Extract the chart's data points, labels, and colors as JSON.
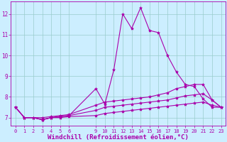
{
  "background_color": "#cceeff",
  "line_color": "#aa00aa",
  "grid_color": "#99cccc",
  "xlabel": "Windchill (Refroidissement éolien,°C)",
  "xlabel_fontsize": 6.5,
  "xtick_labels": [
    "0",
    "1",
    "2",
    "3",
    "4",
    "5",
    "6",
    "9",
    "10",
    "11",
    "12",
    "13",
    "14",
    "15",
    "16",
    "17",
    "18",
    "19",
    "20",
    "21",
    "22",
    "23"
  ],
  "xtick_positions": [
    0,
    1,
    2,
    3,
    4,
    5,
    6,
    9,
    10,
    11,
    12,
    13,
    14,
    15,
    16,
    17,
    18,
    19,
    20,
    21,
    22,
    23
  ],
  "yticks": [
    7,
    8,
    9,
    10,
    11,
    12
  ],
  "ylim": [
    6.6,
    12.6
  ],
  "xlim": [
    -0.5,
    23.5
  ],
  "series1_x": [
    0,
    1,
    2,
    3,
    4,
    5,
    6,
    9,
    10,
    11,
    12,
    13,
    14,
    15,
    16,
    17,
    18,
    19,
    20,
    21,
    22,
    23
  ],
  "series1_y": [
    7.5,
    7.0,
    7.0,
    6.9,
    7.0,
    7.05,
    7.1,
    8.4,
    7.65,
    9.3,
    12.0,
    11.3,
    12.3,
    11.2,
    11.1,
    10.0,
    9.2,
    8.6,
    8.5,
    7.9,
    7.5,
    7.5
  ],
  "series2_x": [
    0,
    1,
    2,
    3,
    4,
    5,
    6,
    9,
    10,
    11,
    12,
    13,
    14,
    15,
    16,
    17,
    18,
    19,
    20,
    21,
    22,
    23
  ],
  "series2_y": [
    7.5,
    7.0,
    7.0,
    7.0,
    7.05,
    7.1,
    7.15,
    7.6,
    7.75,
    7.8,
    7.85,
    7.9,
    7.95,
    8.0,
    8.1,
    8.2,
    8.4,
    8.5,
    8.6,
    8.6,
    7.85,
    7.5
  ],
  "series3_x": [
    0,
    1,
    2,
    3,
    4,
    5,
    6,
    9,
    10,
    11,
    12,
    13,
    14,
    15,
    16,
    17,
    18,
    19,
    20,
    21,
    22,
    23
  ],
  "series3_y": [
    7.5,
    7.0,
    7.0,
    6.9,
    7.0,
    7.05,
    7.1,
    7.35,
    7.5,
    7.55,
    7.6,
    7.65,
    7.7,
    7.75,
    7.8,
    7.85,
    7.95,
    8.05,
    8.1,
    8.15,
    7.85,
    7.5
  ],
  "series4_x": [
    0,
    1,
    2,
    3,
    4,
    5,
    6,
    9,
    10,
    11,
    12,
    13,
    14,
    15,
    16,
    17,
    18,
    19,
    20,
    21,
    22,
    23
  ],
  "series4_y": [
    7.5,
    7.0,
    7.0,
    6.9,
    7.0,
    7.0,
    7.05,
    7.1,
    7.2,
    7.25,
    7.3,
    7.35,
    7.4,
    7.45,
    7.5,
    7.55,
    7.6,
    7.65,
    7.7,
    7.75,
    7.6,
    7.5
  ]
}
